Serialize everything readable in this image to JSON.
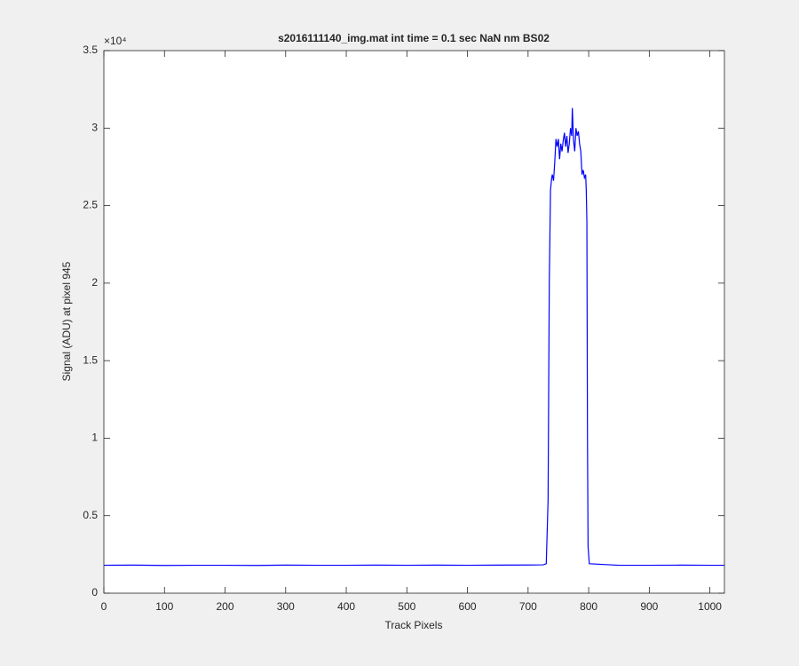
{
  "chart_data": {
    "type": "line",
    "title": "s2016111140_img.mat int time = 0.1 sec  NaN nm BS02",
    "x_label": "Track Pixels",
    "y_label": "Signal (ADU) at pixel 945",
    "y_exponent_label": "×10⁴",
    "x": [
      0,
      50,
      100,
      150,
      200,
      250,
      300,
      350,
      400,
      450,
      500,
      550,
      600,
      650,
      700,
      725,
      730,
      733,
      735,
      737,
      739,
      740,
      742,
      744,
      746,
      748,
      750,
      752,
      754,
      756,
      758,
      760,
      762,
      764,
      766,
      768,
      770,
      772,
      773,
      775,
      777,
      779,
      781,
      783,
      785,
      787,
      789,
      791,
      793,
      795,
      796,
      797,
      798,
      799,
      801,
      850,
      900,
      950,
      1000,
      1024
    ],
    "series": [
      {
        "name": "signal",
        "color": "#0000ff",
        "values": [
          0.18,
          0.181,
          0.179,
          0.18,
          0.18,
          0.179,
          0.181,
          0.18,
          0.18,
          0.181,
          0.18,
          0.181,
          0.18,
          0.181,
          0.182,
          0.183,
          0.19,
          0.6,
          2.0,
          2.6,
          2.68,
          2.7,
          2.66,
          2.78,
          2.93,
          2.88,
          2.93,
          2.8,
          2.9,
          2.85,
          2.92,
          2.97,
          2.88,
          2.95,
          2.84,
          2.9,
          3.0,
          2.95,
          3.13,
          2.92,
          2.85,
          3.0,
          2.95,
          2.98,
          2.9,
          2.85,
          2.7,
          2.73,
          2.68,
          2.7,
          2.6,
          2.4,
          1.0,
          0.3,
          0.19,
          0.18,
          0.18,
          0.181,
          0.18,
          0.18
        ]
      }
    ],
    "xlim": [
      0,
      1024
    ],
    "xticks": [
      0,
      100,
      200,
      300,
      400,
      500,
      600,
      700,
      800,
      900,
      1000
    ],
    "ylim": [
      0,
      3.5
    ],
    "yticks": [
      0,
      0.5,
      1,
      1.5,
      2,
      2.5,
      3,
      3.5
    ],
    "grid": false
  }
}
